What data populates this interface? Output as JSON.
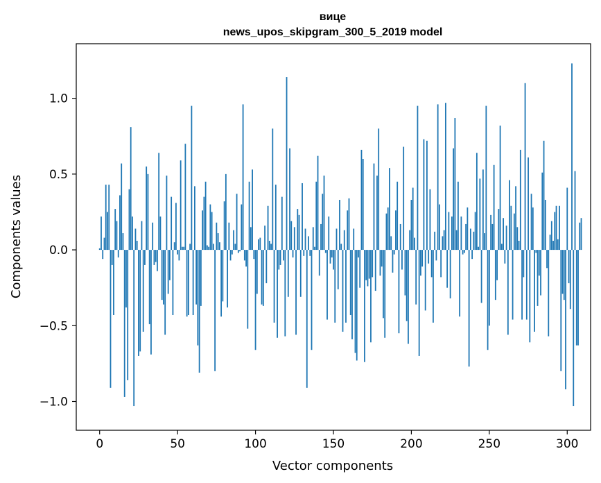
{
  "chart_data": {
    "type": "bar",
    "title": "вице",
    "subtitle": "news_upos_skipgram_300_5_2019 model",
    "xlabel": "Vector components",
    "ylabel": "Components values",
    "xlim": [
      -15,
      315
    ],
    "ylim": [
      -1.19,
      1.36
    ],
    "x_ticks": [
      0,
      50,
      100,
      150,
      200,
      250,
      300
    ],
    "x_tick_labels": [
      "0",
      "50",
      "100",
      "150",
      "200",
      "250",
      "300"
    ],
    "y_ticks": [
      -1.0,
      -0.5,
      0.0,
      0.5,
      1.0
    ],
    "y_tick_labels": [
      "−1.0",
      "−0.5",
      "0.0",
      "0.5",
      "1.0"
    ],
    "bar_color": "#1f77b4",
    "grid": false,
    "series": [
      {
        "values": [
          0.01,
          0.22,
          -0.06,
          0.08,
          0.43,
          0.25,
          0.43,
          -0.91,
          -0.1,
          -0.43,
          0.27,
          0.19,
          -0.05,
          0.36,
          0.57,
          0.11,
          -0.97,
          -0.38,
          -0.86,
          0.4,
          0.81,
          0.22,
          -1.03,
          0.14,
          0.06,
          -0.7,
          -0.67,
          0.19,
          -0.54,
          -0.1,
          0.55,
          0.5,
          -0.49,
          -0.69,
          0.18,
          -0.1,
          -0.08,
          -0.14,
          0.64,
          0.22,
          -0.33,
          -0.36,
          -0.56,
          0.49,
          -0.29,
          -0.2,
          0.35,
          -0.43,
          0.05,
          0.31,
          -0.03,
          -0.07,
          0.59,
          0.02,
          0.02,
          0.7,
          -0.44,
          -0.43,
          0.04,
          0.95,
          -0.43,
          0.42,
          -0.36,
          -0.63,
          -0.81,
          -0.37,
          0.26,
          0.35,
          0.45,
          0.03,
          0.02,
          0.3,
          0.25,
          0.04,
          -0.8,
          0.18,
          0.11,
          0.05,
          -0.44,
          -0.34,
          0.32,
          0.5,
          -0.38,
          0.18,
          -0.07,
          -0.03,
          0.13,
          0.04,
          0.37,
          -0.02,
          -0.01,
          0.3,
          0.96,
          -0.07,
          -0.11,
          -0.52,
          0.45,
          0.15,
          0.53,
          -0.06,
          -0.66,
          -0.29,
          0.07,
          0.08,
          -0.36,
          -0.37,
          0.16,
          -0.22,
          0.29,
          0.06,
          0.04,
          0.8,
          -0.48,
          0.43,
          -0.58,
          -0.13,
          -0.1,
          0.35,
          -0.07,
          -0.57,
          1.14,
          -0.31,
          0.67,
          0.19,
          -0.05,
          0.15,
          -0.56,
          0.27,
          0.23,
          -0.31,
          0.44,
          -0.04,
          0.14,
          -0.91,
          0.09,
          -0.04,
          -0.66,
          0.15,
          0.02,
          0.45,
          0.62,
          -0.17,
          0.17,
          0.37,
          0.49,
          -0.02,
          -0.46,
          0.22,
          -0.09,
          -0.05,
          -0.13,
          -0.48,
          0.14,
          -0.26,
          0.33,
          0.04,
          -0.54,
          0.13,
          -0.48,
          0.26,
          0.34,
          -0.43,
          -0.59,
          0.14,
          -0.68,
          -0.73,
          -0.05,
          -0.25,
          0.66,
          0.6,
          -0.74,
          -0.2,
          -0.24,
          -0.19,
          -0.61,
          -0.18,
          0.57,
          -0.27,
          0.49,
          0.8,
          -0.17,
          -0.11,
          -0.45,
          -0.58,
          0.24,
          0.28,
          0.54,
          0.09,
          -0.15,
          -0.03,
          0.26,
          0.45,
          -0.55,
          0.17,
          -0.13,
          0.68,
          -0.3,
          -0.47,
          -0.62,
          0.13,
          0.33,
          0.41,
          0.08,
          -0.36,
          0.95,
          -0.7,
          -0.17,
          -0.11,
          0.73,
          -0.4,
          0.72,
          -0.09,
          0.4,
          -0.18,
          -0.48,
          0.12,
          -0.07,
          0.96,
          0.3,
          -0.18,
          0.09,
          0.13,
          0.97,
          -0.25,
          0.25,
          -0.32,
          0.22,
          0.67,
          0.87,
          0.13,
          0.45,
          -0.44,
          0.22,
          -0.03,
          -0.02,
          0.17,
          0.28,
          -0.77,
          0.14,
          -0.06,
          0.12,
          0.25,
          0.64,
          0.02,
          0.47,
          -0.35,
          0.53,
          0.11,
          0.95,
          -0.66,
          -0.5,
          0.23,
          0.17,
          0.56,
          -0.33,
          -0.2,
          0.27,
          0.82,
          0.04,
          0.21,
          -0.09,
          0.16,
          -0.56,
          0.46,
          0.29,
          -0.46,
          0.24,
          0.42,
          0.15,
          0.06,
          0.66,
          -0.46,
          -0.18,
          1.1,
          -0.46,
          0.61,
          -0.61,
          0.37,
          0.28,
          -0.54,
          -0.02,
          -0.37,
          -0.17,
          -0.3,
          0.51,
          0.72,
          0.33,
          -0.12,
          -0.57,
          0.1,
          0.19,
          0.06,
          0.25,
          0.29,
          0.07,
          0.29,
          -0.8,
          -0.29,
          -0.33,
          -0.92,
          0.41,
          -0.22,
          -0.39,
          1.23,
          -1.03,
          0.52,
          -0.63,
          -0.63,
          0.18,
          0.21
        ]
      }
    ]
  }
}
